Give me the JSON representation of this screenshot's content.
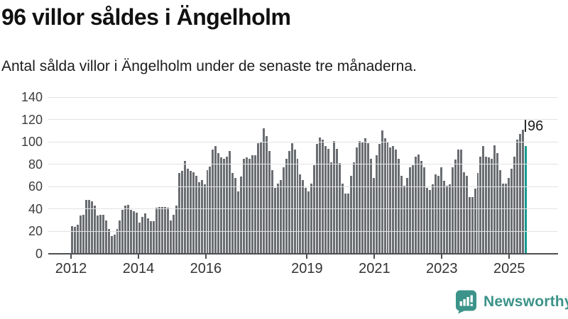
{
  "header": {
    "title": "96 villor såldes i Ängelholm",
    "subtitle": "Antal sålda villor i Ängelholm under de senaste tre månaderna."
  },
  "chart_data": {
    "type": "bar",
    "title": "96 villor såldes i Ängelholm",
    "subtitle": "Antal sålda villor i Ängelholm under de senaste tre månaderna.",
    "x_unit": "month",
    "x_start": "2012-01",
    "ylim": [
      0,
      140
    ],
    "yticks": [
      0,
      20,
      40,
      60,
      80,
      100,
      120,
      140
    ],
    "grid": true,
    "bar_color": "#6a6d71",
    "highlight_color": "#189a8f",
    "axis_color": "#4d4f52",
    "grid_color": "#e2e2e2",
    "xticks": [
      {
        "label": "2012",
        "month": 0
      },
      {
        "label": "2014",
        "month": 24
      },
      {
        "label": "2016",
        "month": 48
      },
      {
        "label": "2019",
        "month": 84
      },
      {
        "label": "2021",
        "month": 108
      },
      {
        "label": "2023",
        "month": 132
      },
      {
        "label": "2025",
        "month": 156
      }
    ],
    "annotation": {
      "text": "96"
    },
    "values": [
      25,
      24,
      26,
      34,
      35,
      48,
      48,
      47,
      43,
      34,
      35,
      35,
      30,
      22,
      16,
      17,
      22,
      30,
      39,
      43,
      44,
      39,
      38,
      37,
      28,
      33,
      36,
      32,
      29,
      29,
      41,
      42,
      42,
      42,
      41,
      30,
      35,
      43,
      72,
      74,
      83,
      76,
      74,
      73,
      70,
      64,
      66,
      62,
      75,
      78,
      93,
      96,
      90,
      86,
      85,
      87,
      92,
      72,
      68,
      56,
      69,
      85,
      86,
      85,
      88,
      88,
      99,
      100,
      112,
      105,
      92,
      75,
      59,
      63,
      66,
      77,
      85,
      92,
      99,
      93,
      85,
      71,
      66,
      59,
      56,
      63,
      79,
      98,
      104,
      102,
      96,
      94,
      82,
      101,
      94,
      81,
      63,
      54,
      54,
      70,
      82,
      95,
      101,
      100,
      103,
      99,
      85,
      68,
      88,
      98,
      110,
      103,
      100,
      95,
      96,
      93,
      85,
      70,
      61,
      68,
      77,
      79,
      87,
      89,
      83,
      77,
      59,
      57,
      62,
      71,
      70,
      77,
      65,
      61,
      62,
      77,
      84,
      93,
      93,
      73,
      70,
      51,
      51,
      58,
      72,
      87,
      96,
      87,
      86,
      85,
      97,
      90,
      75,
      63,
      63,
      68,
      76,
      87,
      102,
      107,
      111,
      96
    ]
  },
  "footer": {
    "brand": "Newsworthy"
  }
}
